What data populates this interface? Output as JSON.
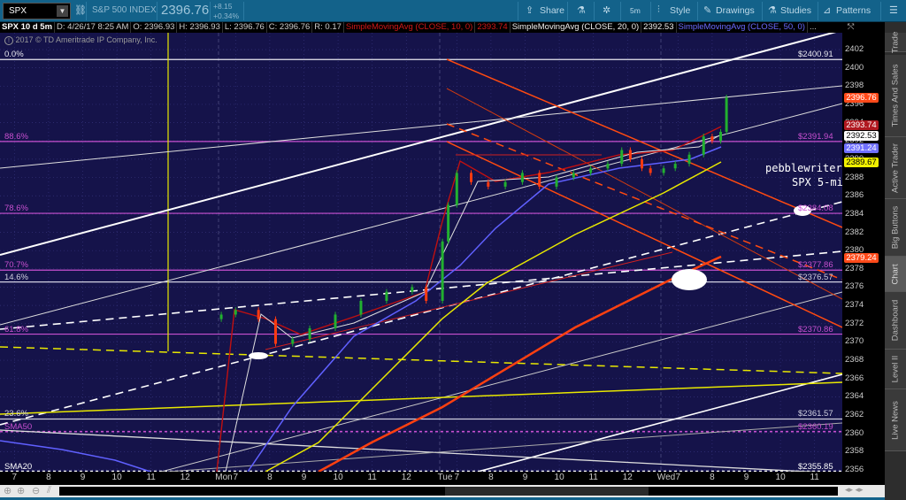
{
  "toolbar": {
    "symbol": "SPX",
    "symbol_name": "S&P 500 INDEX",
    "last_price": "2396.76",
    "change": "+8.15",
    "change_pct": "+0.34%",
    "buttons": {
      "share": "Share",
      "timeframe": "5m",
      "style": "Style",
      "drawings": "Drawings",
      "studies": "Studies",
      "patterns": "Patterns"
    }
  },
  "infobar": {
    "title": "SPX 10 d 5m",
    "date": "D: 4/26/17 8:25 AM",
    "open": "O: 2396.93",
    "high": "H: 2396.93",
    "low": "L: 2396.76",
    "close": "C: 2396.76",
    "range": "R: 0.17",
    "sma10_label": "SimpleMovingAvg (CLOSE, 10, 0)",
    "sma10_value": "2393.74",
    "sma20_label": "SimpleMovingAvg (CLOSE, 20, 0)",
    "sma20_value": "2392.53",
    "sma50_label": "SimpleMovingAvg (CLOSE, 50, 0)",
    "more": "..."
  },
  "copyright": "2017 © TD Ameritrade IP Company, Inc.",
  "annotation": {
    "line1": "pebblewriter",
    "line2": "SPX 5-mi"
  },
  "levels": [
    {
      "pct": "0.0%",
      "price": "$2400.91",
      "value": 2400.91,
      "color": "#e8e8f0"
    },
    {
      "pct": "88.6%",
      "price": "$2391.94",
      "value": 2391.94,
      "color": "#c850d0"
    },
    {
      "pct": "78.6%",
      "price": "$2384.08",
      "value": 2384.08,
      "color": "#c850d0"
    },
    {
      "pct": "70.7%",
      "price": "$2377.86",
      "value": 2377.86,
      "color": "#c850d0"
    },
    {
      "pct": "14.6%",
      "price": "$2376.57",
      "value": 2376.57,
      "color": "#d0d0e0"
    },
    {
      "pct": "61.8%",
      "price": "$2370.86",
      "value": 2370.86,
      "color": "#c850d0"
    },
    {
      "pct": "23.6%",
      "price": "$2361.57",
      "value": 2361.57,
      "color": "#d0d0e0"
    },
    {
      "pct": "SMA50",
      "price": "$2360.19",
      "value": 2360.19,
      "color": "#c850d0",
      "dotted": true
    },
    {
      "pct": "SMA20",
      "price": "$2355.85",
      "value": 2355.85,
      "color": "#ffffff",
      "dotted": true
    }
  ],
  "price_axis": {
    "ticks": [
      "2402",
      "2400",
      "2398",
      "2396",
      "2394",
      "2392",
      "2390",
      "2388",
      "2386",
      "2384",
      "2382",
      "2380",
      "2378",
      "2376",
      "2374",
      "2372",
      "2370",
      "2368",
      "2366",
      "2364",
      "2362",
      "2360",
      "2358",
      "2356"
    ],
    "range": [
      2356,
      2402
    ],
    "badges": [
      {
        "label": "2396.76",
        "value": 2396.76,
        "bg": "#ff4a1a",
        "fg": "#ffffff"
      },
      {
        "label": "2393.74",
        "value": 2393.74,
        "bg": "#b01820",
        "fg": "#ffffff"
      },
      {
        "label": "2392.53",
        "value": 2392.53,
        "bg": "#ffffff",
        "fg": "#000000"
      },
      {
        "label": "2391.24",
        "value": 2391.24,
        "bg": "#7070ff",
        "fg": "#ffffff"
      },
      {
        "label": "2389.67",
        "value": 2389.67,
        "bg": "#f0f000",
        "fg": "#000000"
      },
      {
        "label": "2379.24",
        "value": 2379.24,
        "bg": "#ff4a1a",
        "fg": "#ffffff"
      }
    ]
  },
  "time_axis": {
    "ticks": [
      {
        "label": "7",
        "day": 0,
        "h": 7
      },
      {
        "label": "8",
        "day": 0,
        "h": 8
      },
      {
        "label": "9",
        "day": 0,
        "h": 9
      },
      {
        "label": "10",
        "day": 0,
        "h": 10
      },
      {
        "label": "11",
        "day": 0,
        "h": 11
      },
      {
        "label": "12",
        "day": 0,
        "h": 12
      },
      {
        "label": "Mon",
        "day": 1,
        "h": 6.5
      },
      {
        "label": "7",
        "day": 1,
        "h": 7
      },
      {
        "label": "8",
        "day": 1,
        "h": 8
      },
      {
        "label": "9",
        "day": 1,
        "h": 9
      },
      {
        "label": "10",
        "day": 1,
        "h": 10
      },
      {
        "label": "11",
        "day": 1,
        "h": 11
      },
      {
        "label": "12",
        "day": 1,
        "h": 12
      },
      {
        "label": "Tue",
        "day": 2,
        "h": 6.5
      },
      {
        "label": "7",
        "day": 2,
        "h": 7
      },
      {
        "label": "8",
        "day": 2,
        "h": 8
      },
      {
        "label": "9",
        "day": 2,
        "h": 9
      },
      {
        "label": "10",
        "day": 2,
        "h": 10
      },
      {
        "label": "11",
        "day": 2,
        "h": 11
      },
      {
        "label": "12",
        "day": 2,
        "h": 12
      },
      {
        "label": "Wed",
        "day": 3,
        "h": 6.5
      },
      {
        "label": "7",
        "day": 3,
        "h": 7
      },
      {
        "label": "8",
        "day": 3,
        "h": 8
      },
      {
        "label": "9",
        "day": 3,
        "h": 9
      },
      {
        "label": "10",
        "day": 3,
        "h": 10
      },
      {
        "label": "11",
        "day": 3,
        "h": 11
      }
    ]
  },
  "price_series": [
    {
      "day": 1,
      "h": 6.58,
      "close": 2373
    },
    {
      "day": 1,
      "h": 7.0,
      "close": 2373.5
    },
    {
      "day": 1,
      "h": 7.67,
      "close": 2372.5
    },
    {
      "day": 1,
      "h": 8.17,
      "close": 2369.8
    },
    {
      "day": 1,
      "h": 8.67,
      "close": 2370.3
    },
    {
      "day": 1,
      "h": 9.17,
      "close": 2371.5
    },
    {
      "day": 1,
      "h": 9.92,
      "close": 2373
    },
    {
      "day": 1,
      "h": 10.67,
      "close": 2374.5
    },
    {
      "day": 1,
      "h": 11.42,
      "close": 2375.5
    },
    {
      "day": 1,
      "h": 12.17,
      "close": 2376
    },
    {
      "day": 1,
      "h": 12.58,
      "close": 2374.5
    },
    {
      "day": 2,
      "h": 6.58,
      "close": 2381
    },
    {
      "day": 2,
      "h": 6.75,
      "close": 2385
    },
    {
      "day": 2,
      "h": 7.0,
      "close": 2388.5
    },
    {
      "day": 2,
      "h": 7.42,
      "close": 2387.5
    },
    {
      "day": 2,
      "h": 7.92,
      "close": 2387
    },
    {
      "day": 2,
      "h": 8.42,
      "close": 2387.5
    },
    {
      "day": 2,
      "h": 8.92,
      "close": 2388.5
    },
    {
      "day": 2,
      "h": 9.42,
      "close": 2387
    },
    {
      "day": 2,
      "h": 9.92,
      "close": 2388
    },
    {
      "day": 2,
      "h": 10.42,
      "close": 2388.5
    },
    {
      "day": 2,
      "h": 10.92,
      "close": 2389
    },
    {
      "day": 2,
      "h": 11.42,
      "close": 2389.5
    },
    {
      "day": 2,
      "h": 11.83,
      "close": 2391
    },
    {
      "day": 2,
      "h": 12.08,
      "close": 2390
    },
    {
      "day": 2,
      "h": 12.42,
      "close": 2389
    },
    {
      "day": 2,
      "h": 12.67,
      "close": 2388.5
    },
    {
      "day": 3,
      "h": 6.58,
      "close": 2389
    },
    {
      "day": 3,
      "h": 6.92,
      "close": 2389.5
    },
    {
      "day": 3,
      "h": 7.33,
      "close": 2390.5
    },
    {
      "day": 3,
      "h": 7.75,
      "close": 2392.5
    },
    {
      "day": 3,
      "h": 8.0,
      "close": 2392
    },
    {
      "day": 3,
      "h": 8.25,
      "close": 2393
    },
    {
      "day": 3,
      "h": 8.42,
      "close": 2396.76
    }
  ],
  "colors": {
    "up": "#22b030",
    "down": "#ff3a10",
    "sma10": "#c01010",
    "sma20": "#e0e0e0",
    "sma50": "#6060ff",
    "background": "#15134a"
  },
  "side_tabs": [
    "Trade",
    "Times And Sales",
    "Active Trader",
    "Big Buttons",
    "Chart",
    "Dashboard",
    "Level II",
    "Live News"
  ],
  "selected_tab": "Chart"
}
